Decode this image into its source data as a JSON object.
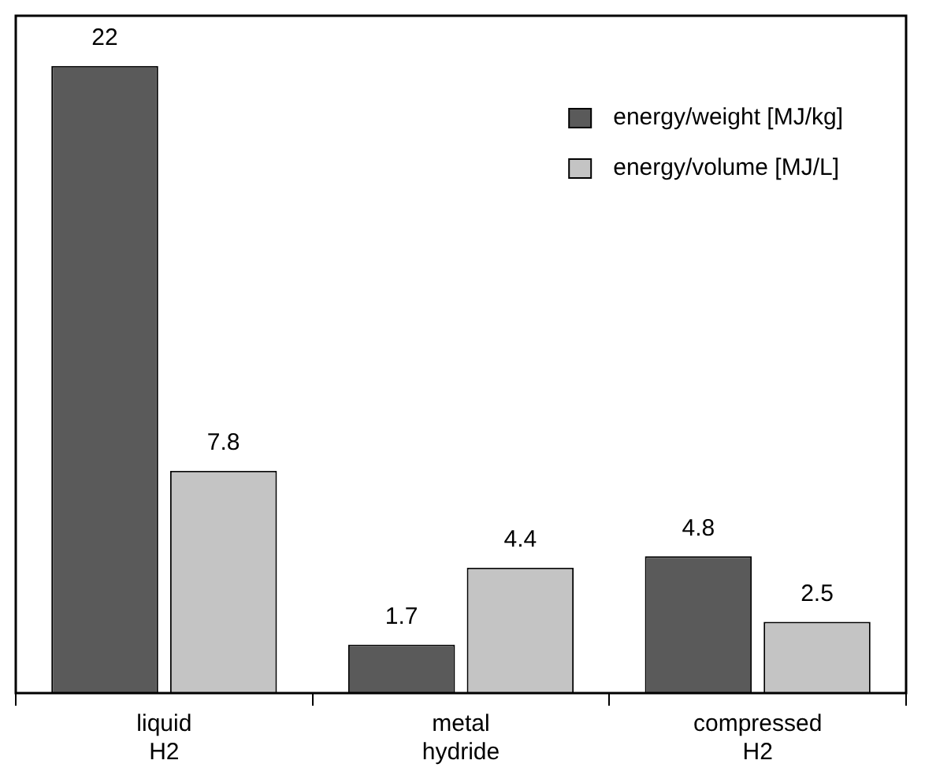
{
  "chart_data": {
    "type": "bar",
    "categories": [
      "liquid H2",
      "metal hydride",
      "compressed H2"
    ],
    "series": [
      {
        "name": "energy/weight [MJ/kg]",
        "color": "#5a5a5a",
        "values": [
          22,
          1.7,
          4.8
        ]
      },
      {
        "name": "energy/volume [MJ/L]",
        "color": "#c4c4c4",
        "values": [
          7.8,
          4.4,
          2.5
        ]
      }
    ],
    "data_labels": true,
    "legend": "top right",
    "grid": false,
    "tick_labels": "x"
  }
}
